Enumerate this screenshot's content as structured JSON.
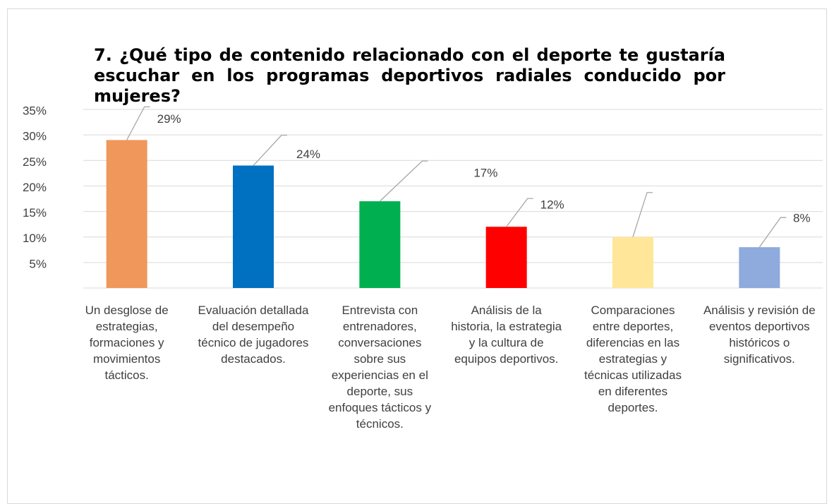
{
  "chart_data": {
    "type": "bar",
    "title": "7. ¿Qué tipo de contenido relacionado con el deporte te gustaría escuchar en los programas deportivos radiales conducido por mujeres?",
    "categories": [
      "Un desglose de estrategias, formaciones y movimientos tácticos.",
      "Evaluación detallada del desempeño técnico de jugadores destacados.",
      "Entrevista con entrenadores, conversaciones sobre sus experiencias en el deporte, sus enfoques tácticos y técnicos.",
      "Análisis de la historia, la estrategia y la cultura de equipos deportivos.",
      "Comparaciones entre deportes, diferencias en las estrategias y técnicas utilizadas en diferentes deportes.",
      "Análisis y revisión de eventos deportivos históricos o significativos."
    ],
    "values": [
      29,
      24,
      17,
      12,
      10,
      8
    ],
    "value_labels": [
      "29%",
      "24%",
      "17%",
      "12%",
      null,
      "8%"
    ],
    "colors": [
      "#f0975b",
      "#0070c0",
      "#00b050",
      "#ff0000",
      "#ffe699",
      "#8faadc"
    ],
    "ylim": [
      0,
      35
    ],
    "yticks": [
      {
        "value": 5,
        "label": "5%"
      },
      {
        "value": 10,
        "label": "10%"
      },
      {
        "value": 15,
        "label": "15%"
      },
      {
        "value": 20,
        "label": "20%"
      },
      {
        "value": 25,
        "label": "25%"
      },
      {
        "value": 30,
        "label": "30%"
      },
      {
        "value": 35,
        "label": "35%"
      }
    ],
    "grid": true
  }
}
